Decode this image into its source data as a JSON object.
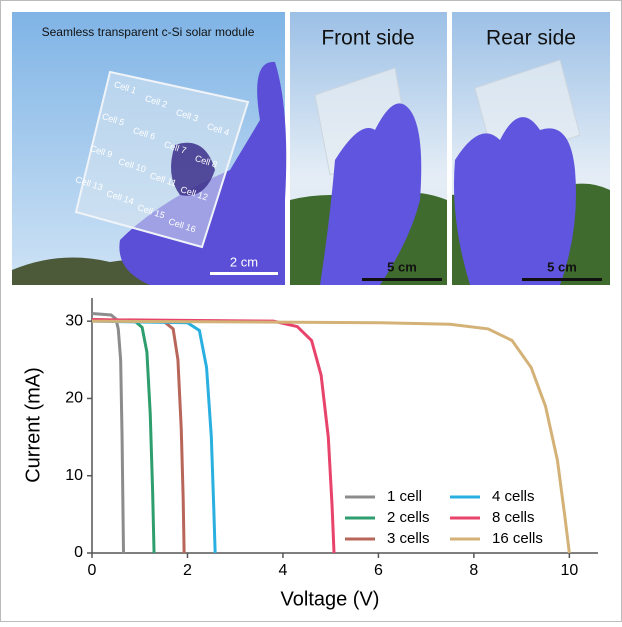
{
  "panels": {
    "module_title": "Seamless transparent c-Si solar module",
    "cells": [
      "Cell 1",
      "Cell 2",
      "Cell 3",
      "Cell 4",
      "Cell 5",
      "Cell 6",
      "Cell 7",
      "Cell 8",
      "Cell 9",
      "Cell 10",
      "Cell 11",
      "Cell 12",
      "Cell 13",
      "Cell 14",
      "Cell 15",
      "Cell 16"
    ],
    "scale_1": "2 cm",
    "front_title": "Front side",
    "scale_2": "5 cm",
    "rear_title": "Rear side",
    "scale_3": "5 cm"
  },
  "chart_data": {
    "type": "line",
    "x_label": "Voltage (V)",
    "y_label": "Current (mA)",
    "xlim": [
      0,
      10.6
    ],
    "ylim": [
      0,
      33
    ],
    "xticks": [
      0,
      2,
      4,
      6,
      8,
      10
    ],
    "yticks": [
      0,
      10,
      20,
      30
    ],
    "series": [
      {
        "name": "1 cell",
        "color": "#8c8c8c",
        "x": [
          0,
          0.4,
          0.5,
          0.55,
          0.6,
          0.63,
          0.65,
          0.66
        ],
        "values": [
          31,
          30.8,
          30.3,
          29,
          25,
          15,
          5,
          0
        ]
      },
      {
        "name": "2 cells",
        "color": "#2e9e6e",
        "x": [
          0,
          0.9,
          1.05,
          1.15,
          1.22,
          1.27,
          1.3
        ],
        "values": [
          30.2,
          30,
          29.2,
          26,
          18,
          8,
          0
        ]
      },
      {
        "name": "3 cells",
        "color": "#b9665a",
        "x": [
          0,
          1.5,
          1.7,
          1.8,
          1.87,
          1.91,
          1.93
        ],
        "values": [
          30.2,
          30,
          29,
          25,
          16,
          7,
          0
        ]
      },
      {
        "name": "4 cells",
        "color": "#2ab0e0",
        "x": [
          0,
          2.0,
          2.25,
          2.4,
          2.5,
          2.55,
          2.58
        ],
        "values": [
          30,
          29.8,
          28.8,
          24,
          15,
          6,
          0
        ]
      },
      {
        "name": "8 cells",
        "color": "#e8436a",
        "x": [
          0,
          3.8,
          4.3,
          4.6,
          4.8,
          4.95,
          5.03,
          5.07
        ],
        "values": [
          30.2,
          30,
          29.3,
          27.5,
          23,
          15,
          6,
          0
        ]
      },
      {
        "name": "16 cells",
        "color": "#d4b277",
        "x": [
          0,
          6,
          7.5,
          8.3,
          8.8,
          9.2,
          9.5,
          9.75,
          9.9,
          10.0
        ],
        "values": [
          30,
          29.8,
          29.6,
          29,
          27.5,
          24,
          19,
          12,
          5,
          0
        ]
      }
    ]
  }
}
